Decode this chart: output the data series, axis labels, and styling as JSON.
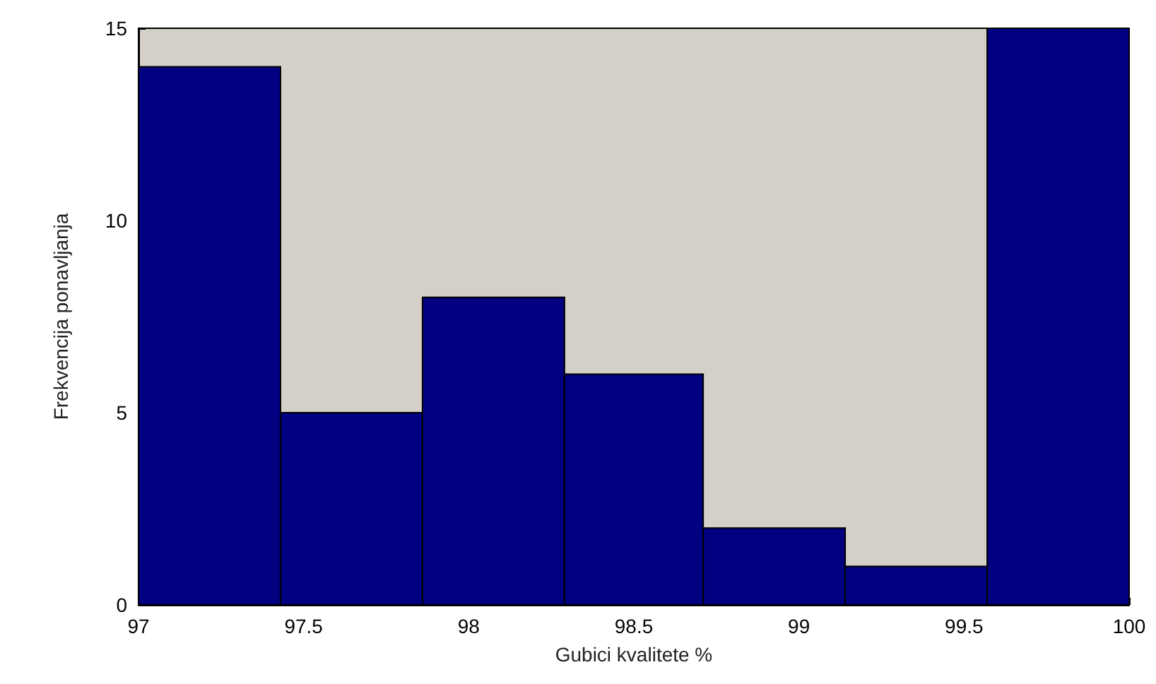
{
  "chart_data": {
    "type": "histogram",
    "xlabel": "Gubici kvalitete %",
    "ylabel": "Frekvencija ponavljanja",
    "bins": [
      97,
      97.43,
      97.86,
      98.29,
      98.71,
      99.14,
      99.57,
      100
    ],
    "values": [
      14,
      5,
      8,
      6,
      2,
      1,
      15
    ],
    "color": "#000080",
    "xlim": [
      97,
      100
    ],
    "xticks": [
      97,
      97.5,
      98,
      98.5,
      99,
      99.5,
      100
    ],
    "ylim": [
      0,
      15
    ],
    "yticks": [
      0,
      5,
      10,
      15
    ],
    "grid": false
  }
}
